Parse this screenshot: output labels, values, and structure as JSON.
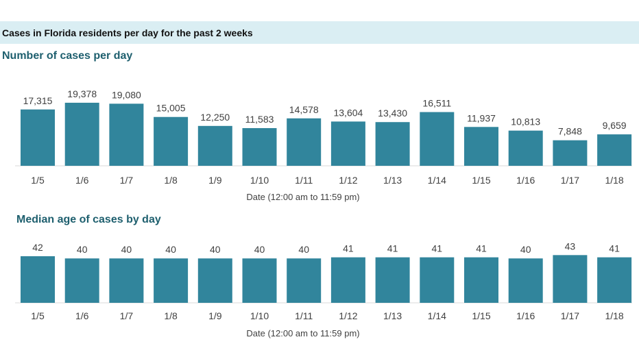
{
  "header": {
    "banner": "Cases in Florida residents per day for the past 2 weeks"
  },
  "colors": {
    "bar": "#31859c",
    "banner_background": "#daeef3",
    "title": "#1e5f6e"
  },
  "chart_data": [
    {
      "type": "bar",
      "title": "Number of cases per day",
      "xlabel": "Date (12:00 am to 11:59 pm)",
      "ylabel": "",
      "categories": [
        "1/5",
        "1/6",
        "1/7",
        "1/8",
        "1/9",
        "1/10",
        "1/11",
        "1/12",
        "1/13",
        "1/14",
        "1/15",
        "1/16",
        "1/17",
        "1/18"
      ],
      "values": [
        17315,
        19378,
        19080,
        15005,
        12250,
        11583,
        14578,
        13604,
        13430,
        16511,
        11937,
        10813,
        7848,
        9659
      ],
      "value_labels": [
        "17,315",
        "19,378",
        "19,080",
        "15,005",
        "12,250",
        "11,583",
        "14,578",
        "13,604",
        "13,430",
        "16,511",
        "11,937",
        "10,813",
        "7,848",
        "9,659"
      ],
      "ylim": [
        0,
        20000
      ],
      "grid": false,
      "legend": "none"
    },
    {
      "type": "bar",
      "title": "Median age of cases by day",
      "xlabel": "Date (12:00 am to 11:59 pm)",
      "ylabel": "",
      "categories": [
        "1/5",
        "1/6",
        "1/7",
        "1/8",
        "1/9",
        "1/10",
        "1/11",
        "1/12",
        "1/13",
        "1/14",
        "1/15",
        "1/16",
        "1/17",
        "1/18"
      ],
      "values": [
        42,
        40,
        40,
        40,
        40,
        40,
        40,
        41,
        41,
        41,
        41,
        40,
        43,
        41
      ],
      "value_labels": [
        "42",
        "40",
        "40",
        "40",
        "40",
        "40",
        "40",
        "41",
        "41",
        "41",
        "41",
        "40",
        "43",
        "41"
      ],
      "ylim": [
        0,
        50
      ],
      "grid": false,
      "legend": "none"
    }
  ]
}
